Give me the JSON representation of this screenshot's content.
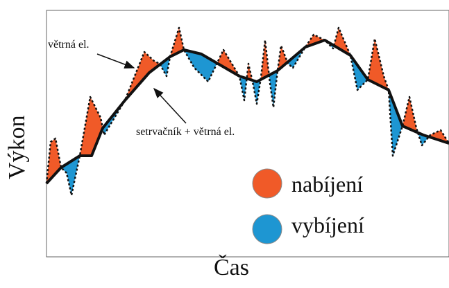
{
  "diagram": {
    "ylabel": "Výkon",
    "xlabel": "Čas",
    "annotations": {
      "wind": "větrná el.",
      "flywheel": "setrvačník + větrná el."
    },
    "legend": [
      {
        "label": "nabíjení",
        "color": "#f05a28"
      },
      {
        "label": "vybíjení",
        "color": "#1e96d2"
      }
    ],
    "colors": {
      "charge": "#f05a28",
      "discharge": "#1e96d2",
      "line": "#111111"
    }
  }
}
